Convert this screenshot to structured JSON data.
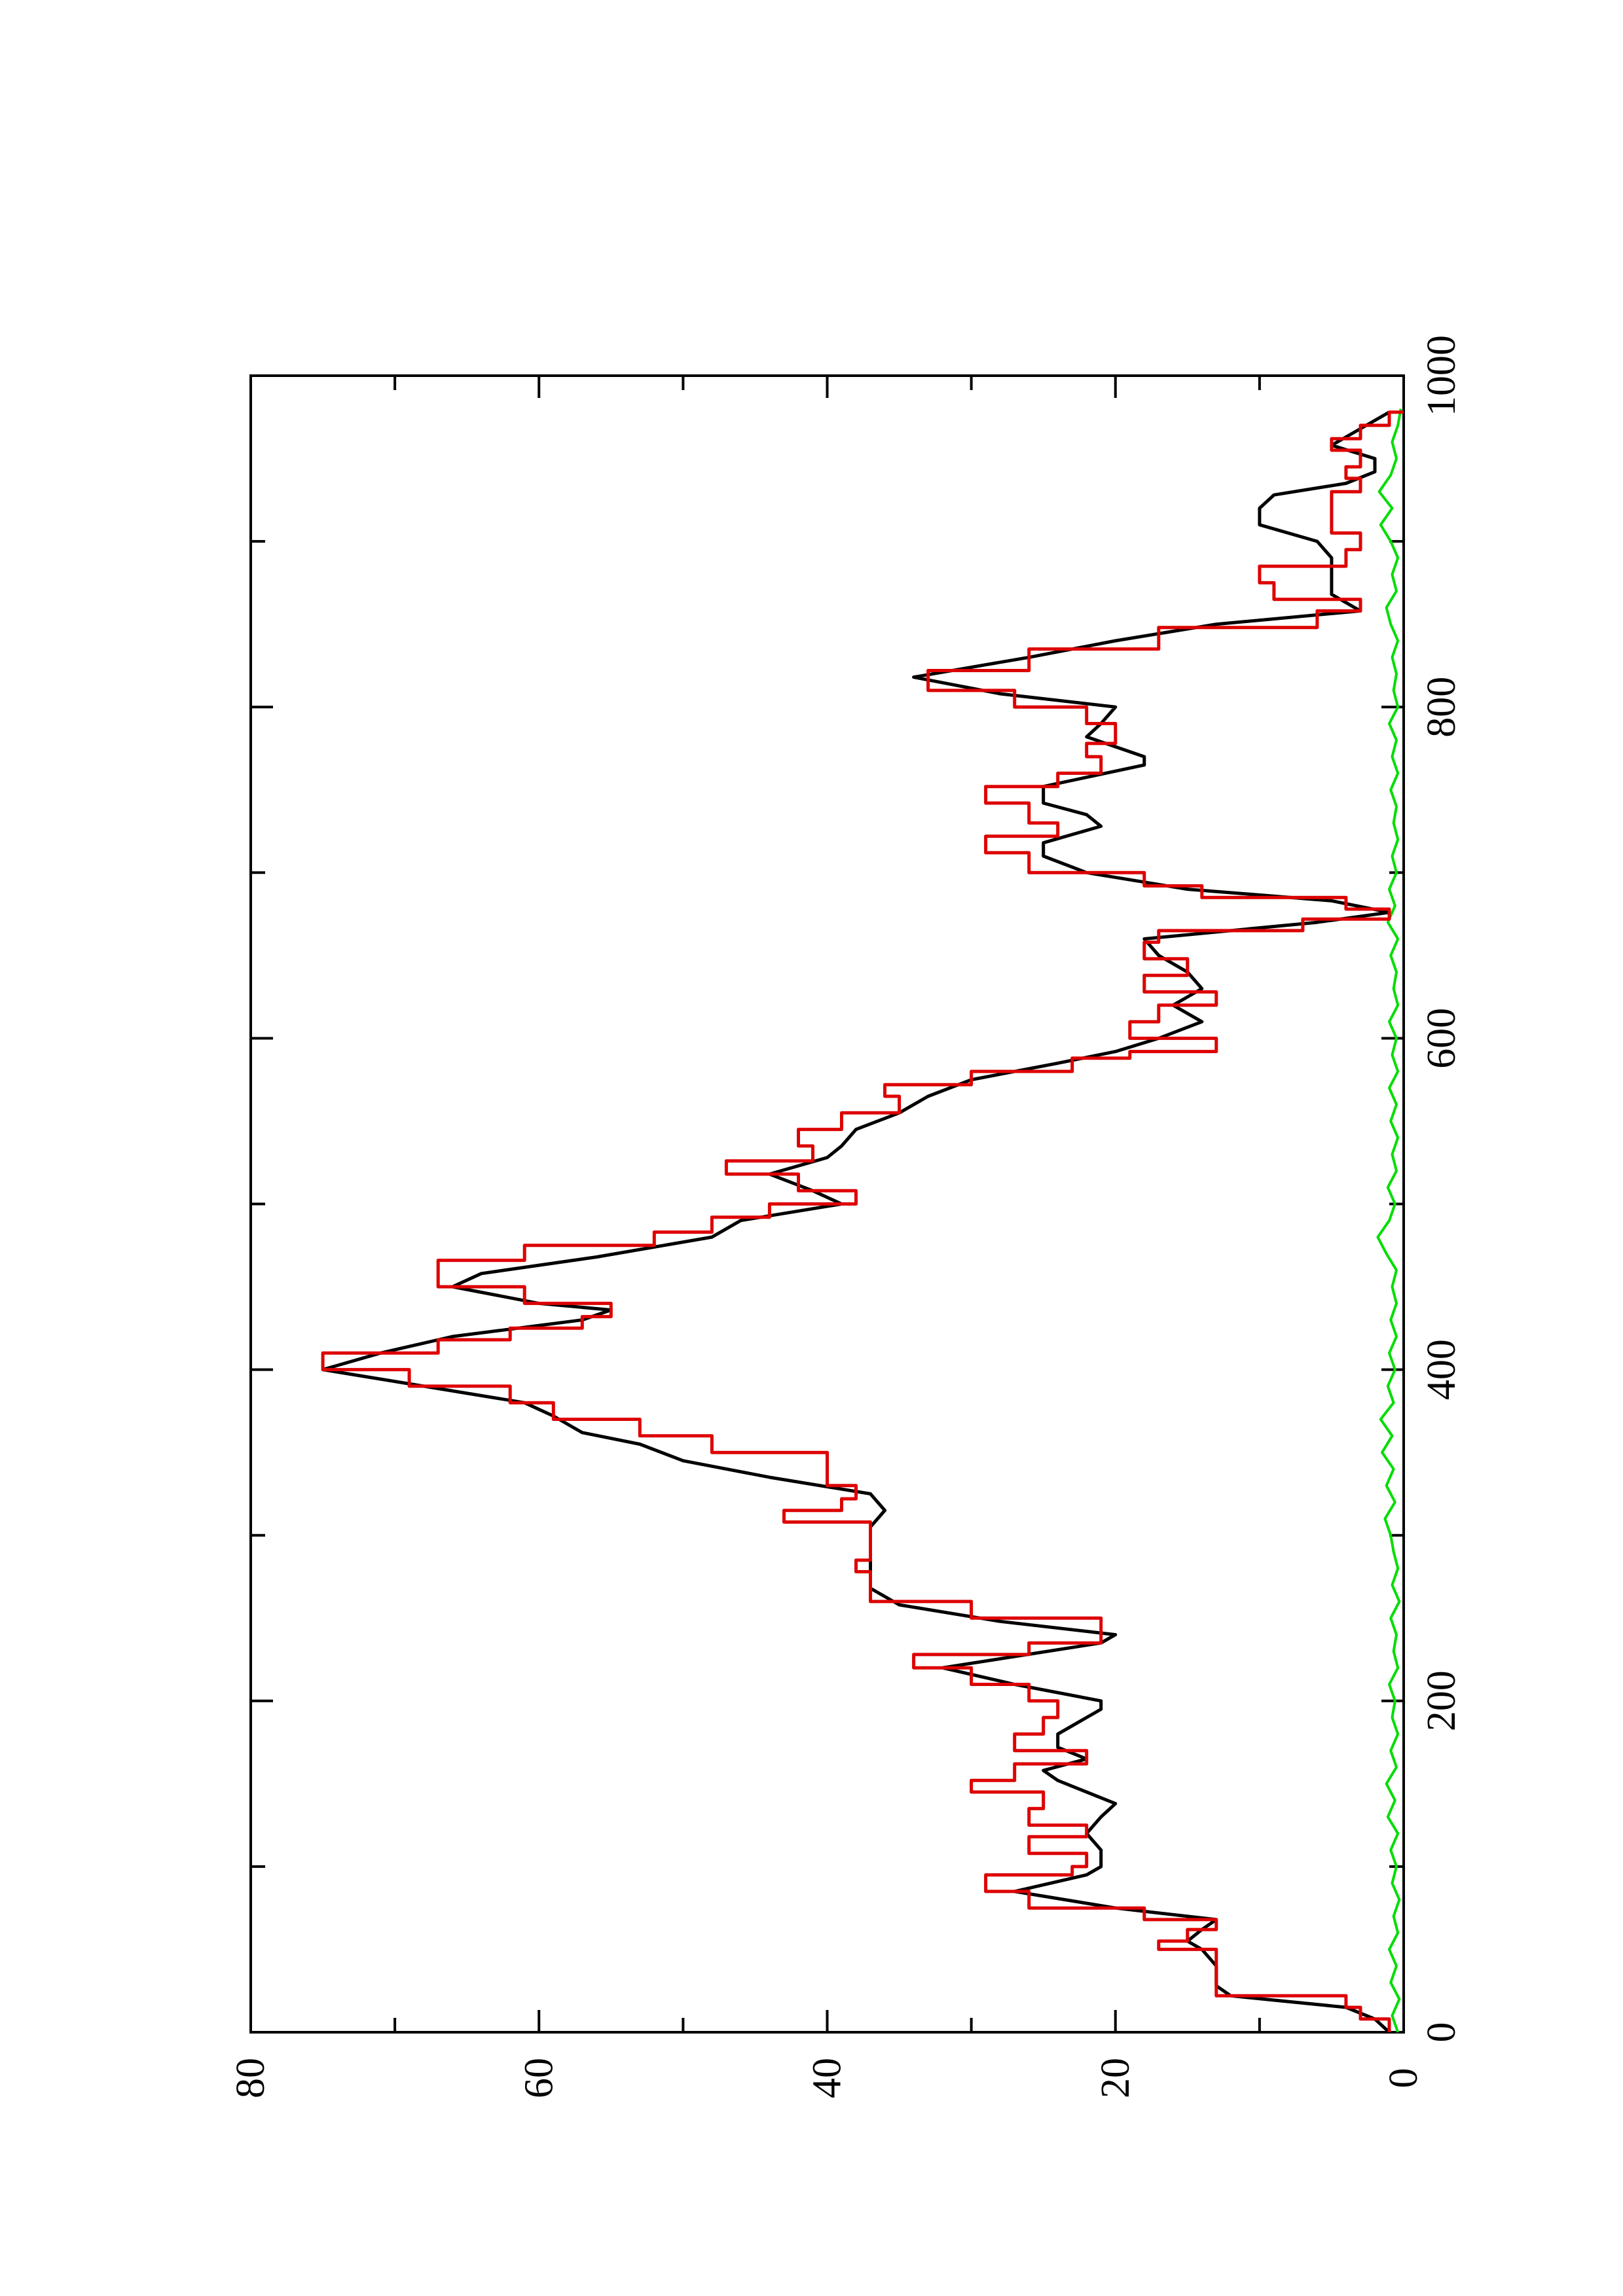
{
  "chart_data": {
    "type": "line",
    "orientation": "rotated 90 degrees counter-clockwise",
    "title": "",
    "xlabel": "",
    "ylabel": "",
    "xlim": [
      0,
      1000
    ],
    "ylim": [
      0,
      80
    ],
    "x_ticks": [
      "0",
      "200",
      "400",
      "600",
      "800",
      "1000"
    ],
    "y_ticks": [
      "0",
      "20",
      "40",
      "60",
      "80"
    ],
    "grid": false,
    "legend": "none",
    "series": [
      {
        "color": "#000000",
        "style": "line",
        "points": [
          [
            0,
            1
          ],
          [
            8,
            2
          ],
          [
            15,
            4
          ],
          [
            22,
            12
          ],
          [
            28,
            13
          ],
          [
            40,
            13
          ],
          [
            50,
            14
          ],
          [
            55,
            15
          ],
          [
            62,
            14
          ],
          [
            68,
            13
          ],
          [
            75,
            20
          ],
          [
            85,
            27
          ],
          [
            95,
            22
          ],
          [
            100,
            21
          ],
          [
            110,
            21
          ],
          [
            120,
            22
          ],
          [
            130,
            21
          ],
          [
            138,
            20
          ],
          [
            145,
            22
          ],
          [
            152,
            24
          ],
          [
            158,
            25
          ],
          [
            165,
            22
          ],
          [
            172,
            24
          ],
          [
            180,
            24
          ],
          [
            195,
            21
          ],
          [
            200,
            21
          ],
          [
            210,
            27
          ],
          [
            220,
            32
          ],
          [
            235,
            21
          ],
          [
            240,
            20
          ],
          [
            248,
            28
          ],
          [
            258,
            35
          ],
          [
            268,
            37
          ],
          [
            275,
            37
          ],
          [
            285,
            37
          ],
          [
            295,
            37
          ],
          [
            305,
            37
          ],
          [
            315,
            36
          ],
          [
            325,
            37
          ],
          [
            335,
            44
          ],
          [
            345,
            50
          ],
          [
            355,
            53
          ],
          [
            362,
            57
          ],
          [
            372,
            59
          ],
          [
            380,
            61
          ],
          [
            390,
            68
          ],
          [
            400,
            75
          ],
          [
            410,
            71
          ],
          [
            420,
            66
          ],
          [
            430,
            57
          ],
          [
            436,
            55
          ],
          [
            440,
            60
          ],
          [
            450,
            66
          ],
          [
            458,
            64
          ],
          [
            468,
            56
          ],
          [
            480,
            48
          ],
          [
            490,
            46
          ],
          [
            500,
            39
          ],
          [
            508,
            41
          ],
          [
            518,
            44
          ],
          [
            528,
            40
          ],
          [
            535,
            39
          ],
          [
            545,
            38
          ],
          [
            555,
            35
          ],
          [
            565,
            33
          ],
          [
            575,
            30
          ],
          [
            585,
            24
          ],
          [
            592,
            20
          ],
          [
            600,
            17
          ],
          [
            610,
            14
          ],
          [
            620,
            16
          ],
          [
            630,
            14
          ],
          [
            640,
            15
          ],
          [
            650,
            17
          ],
          [
            660,
            18
          ],
          [
            670,
            6
          ],
          [
            676,
            1
          ],
          [
            683,
            5
          ],
          [
            690,
            15
          ],
          [
            700,
            22
          ],
          [
            710,
            25
          ],
          [
            718,
            25
          ],
          [
            728,
            21
          ],
          [
            735,
            22
          ],
          [
            742,
            25
          ],
          [
            752,
            25
          ],
          [
            765,
            18
          ],
          [
            770,
            18
          ],
          [
            782,
            22
          ],
          [
            790,
            21
          ],
          [
            800,
            20
          ],
          [
            808,
            28
          ],
          [
            818,
            34
          ],
          [
            830,
            26
          ],
          [
            840,
            20
          ],
          [
            850,
            13
          ],
          [
            858,
            3
          ],
          [
            868,
            5
          ],
          [
            880,
            5
          ],
          [
            890,
            5
          ],
          [
            900,
            6
          ],
          [
            910,
            10
          ],
          [
            920,
            10
          ],
          [
            928,
            9
          ],
          [
            935,
            4
          ],
          [
            942,
            2
          ],
          [
            950,
            2
          ],
          [
            958,
            5
          ],
          [
            968,
            3
          ],
          [
            978,
            1
          ]
        ]
      },
      {
        "color": "#dd0000",
        "style": "step",
        "points": [
          [
            0,
            1
          ],
          [
            8,
            3
          ],
          [
            15,
            4
          ],
          [
            22,
            13
          ],
          [
            28,
            13
          ],
          [
            40,
            13
          ],
          [
            50,
            17
          ],
          [
            55,
            15
          ],
          [
            62,
            13
          ],
          [
            68,
            18
          ],
          [
            75,
            26
          ],
          [
            85,
            29
          ],
          [
            95,
            23
          ],
          [
            100,
            22
          ],
          [
            108,
            26
          ],
          [
            118,
            22
          ],
          [
            125,
            26
          ],
          [
            135,
            25
          ],
          [
            145,
            30
          ],
          [
            152,
            27
          ],
          [
            162,
            22
          ],
          [
            170,
            27
          ],
          [
            180,
            25
          ],
          [
            190,
            24
          ],
          [
            200,
            26
          ],
          [
            210,
            30
          ],
          [
            220,
            34
          ],
          [
            228,
            26
          ],
          [
            235,
            21
          ],
          [
            240,
            21
          ],
          [
            250,
            30
          ],
          [
            260,
            37
          ],
          [
            270,
            37
          ],
          [
            278,
            38
          ],
          [
            285,
            37
          ],
          [
            292,
            37
          ],
          [
            300,
            37
          ],
          [
            308,
            43
          ],
          [
            315,
            39
          ],
          [
            322,
            38
          ],
          [
            330,
            40
          ],
          [
            340,
            40
          ],
          [
            350,
            48
          ],
          [
            360,
            53
          ],
          [
            370,
            59
          ],
          [
            380,
            62
          ],
          [
            390,
            69
          ],
          [
            400,
            75
          ],
          [
            410,
            67
          ],
          [
            418,
            62
          ],
          [
            425,
            57
          ],
          [
            432,
            55
          ],
          [
            440,
            61
          ],
          [
            450,
            67
          ],
          [
            458,
            67
          ],
          [
            466,
            61
          ],
          [
            475,
            52
          ],
          [
            483,
            48
          ],
          [
            492,
            44
          ],
          [
            500,
            38
          ],
          [
            508,
            42
          ],
          [
            518,
            47
          ],
          [
            526,
            41
          ],
          [
            535,
            42
          ],
          [
            545,
            39
          ],
          [
            555,
            35
          ],
          [
            565,
            36
          ],
          [
            572,
            30
          ],
          [
            580,
            23
          ],
          [
            588,
            19
          ],
          [
            592,
            13
          ],
          [
            600,
            19
          ],
          [
            610,
            17
          ],
          [
            620,
            13
          ],
          [
            628,
            18
          ],
          [
            638,
            15
          ],
          [
            648,
            18
          ],
          [
            658,
            17
          ],
          [
            665,
            7
          ],
          [
            672,
            1
          ],
          [
            678,
            4
          ],
          [
            685,
            14
          ],
          [
            692,
            18
          ],
          [
            700,
            26
          ],
          [
            712,
            29
          ],
          [
            722,
            24
          ],
          [
            730,
            26
          ],
          [
            742,
            29
          ],
          [
            752,
            24
          ],
          [
            760,
            21
          ],
          [
            770,
            22
          ],
          [
            778,
            20
          ],
          [
            790,
            22
          ],
          [
            800,
            27
          ],
          [
            810,
            33
          ],
          [
            822,
            26
          ],
          [
            835,
            17
          ],
          [
            848,
            6
          ],
          [
            858,
            3
          ],
          [
            865,
            9
          ],
          [
            875,
            10
          ],
          [
            885,
            4
          ],
          [
            895,
            3
          ],
          [
            905,
            5
          ],
          [
            912,
            5
          ],
          [
            922,
            5
          ],
          [
            930,
            3
          ],
          [
            938,
            4
          ],
          [
            945,
            3
          ],
          [
            955,
            5
          ],
          [
            962,
            3
          ],
          [
            970,
            1
          ],
          [
            978,
            0
          ]
        ]
      },
      {
        "color": "#00dd00",
        "style": "noise",
        "points": [
          [
            0,
            0.4
          ],
          [
            10,
            0.8
          ],
          [
            20,
            0.3
          ],
          [
            30,
            0.9
          ],
          [
            40,
            0.5
          ],
          [
            50,
            1.0
          ],
          [
            60,
            0.4
          ],
          [
            70,
            0.7
          ],
          [
            80,
            0.3
          ],
          [
            90,
            0.8
          ],
          [
            100,
            0.5
          ],
          [
            110,
            0.9
          ],
          [
            120,
            0.4
          ],
          [
            130,
            1.1
          ],
          [
            140,
            0.6
          ],
          [
            150,
            1.2
          ],
          [
            160,
            0.5
          ],
          [
            170,
            0.9
          ],
          [
            180,
            0.4
          ],
          [
            190,
            0.8
          ],
          [
            200,
            0.6
          ],
          [
            210,
            1.0
          ],
          [
            220,
            0.4
          ],
          [
            230,
            0.7
          ],
          [
            240,
            0.5
          ],
          [
            250,
            0.9
          ],
          [
            260,
            0.3
          ],
          [
            270,
            0.8
          ],
          [
            280,
            0.4
          ],
          [
            290,
            0.7
          ],
          [
            300,
            0.9
          ],
          [
            310,
            1.3
          ],
          [
            320,
            0.6
          ],
          [
            330,
            1.2
          ],
          [
            340,
            0.7
          ],
          [
            350,
            1.5
          ],
          [
            360,
            0.8
          ],
          [
            370,
            1.6
          ],
          [
            380,
            0.7
          ],
          [
            390,
            1.1
          ],
          [
            400,
            0.6
          ],
          [
            410,
            1.0
          ],
          [
            420,
            0.5
          ],
          [
            430,
            0.9
          ],
          [
            440,
            0.5
          ],
          [
            450,
            0.8
          ],
          [
            460,
            0.5
          ],
          [
            470,
            1.2
          ],
          [
            480,
            1.8
          ],
          [
            490,
            1.0
          ],
          [
            500,
            0.6
          ],
          [
            510,
            1.1
          ],
          [
            520,
            0.5
          ],
          [
            530,
            0.8
          ],
          [
            540,
            0.4
          ],
          [
            550,
            0.9
          ],
          [
            560,
            0.5
          ],
          [
            570,
            1.0
          ],
          [
            580,
            0.4
          ],
          [
            590,
            0.8
          ],
          [
            600,
            0.5
          ],
          [
            610,
            1.0
          ],
          [
            620,
            0.4
          ],
          [
            630,
            0.7
          ],
          [
            640,
            0.5
          ],
          [
            650,
            0.9
          ],
          [
            660,
            0.4
          ],
          [
            670,
            1.1
          ],
          [
            680,
            0.6
          ],
          [
            690,
            1.0
          ],
          [
            700,
            0.5
          ],
          [
            710,
            0.8
          ],
          [
            720,
            0.4
          ],
          [
            730,
            0.7
          ],
          [
            740,
            0.5
          ],
          [
            750,
            0.9
          ],
          [
            760,
            0.4
          ],
          [
            770,
            0.8
          ],
          [
            780,
            0.5
          ],
          [
            790,
            1.0
          ],
          [
            800,
            0.4
          ],
          [
            810,
            0.7
          ],
          [
            820,
            0.5
          ],
          [
            830,
            0.8
          ],
          [
            840,
            0.4
          ],
          [
            850,
            0.9
          ],
          [
            860,
            1.2
          ],
          [
            870,
            0.5
          ],
          [
            880,
            0.8
          ],
          [
            890,
            0.4
          ],
          [
            900,
            0.9
          ],
          [
            910,
            1.6
          ],
          [
            920,
            0.8
          ],
          [
            930,
            1.7
          ],
          [
            940,
            0.9
          ],
          [
            950,
            0.5
          ],
          [
            960,
            0.8
          ],
          [
            970,
            0.4
          ],
          [
            980,
            0.2
          ]
        ]
      }
    ]
  }
}
